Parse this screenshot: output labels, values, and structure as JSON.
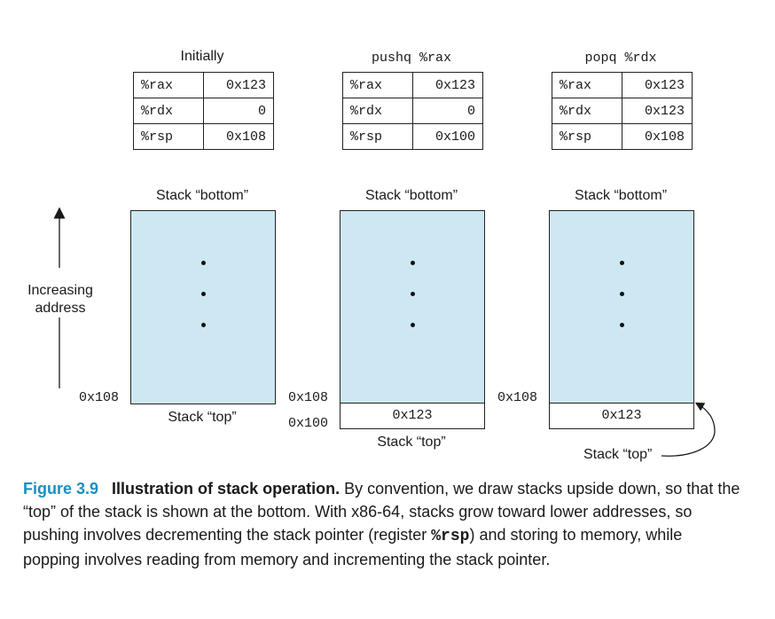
{
  "columns": [
    {
      "title": "Initially",
      "registers": [
        {
          "name": "%rax",
          "value": "0x123"
        },
        {
          "name": "%rdx",
          "value": "0"
        },
        {
          "name": "%rsp",
          "value": "0x108"
        }
      ],
      "stack_bottom_label": "Stack “bottom”",
      "stack_top_label": "Stack “top”",
      "addr_top": "0x108",
      "addr_bottom": "",
      "top_cell": ""
    },
    {
      "title": "pushq %rax",
      "registers": [
        {
          "name": "%rax",
          "value": "0x123"
        },
        {
          "name": "%rdx",
          "value": "0"
        },
        {
          "name": "%rsp",
          "value": "0x100"
        }
      ],
      "stack_bottom_label": "Stack “bottom”",
      "stack_top_label": "Stack “top”",
      "addr_top": "0x108",
      "addr_bottom": "0x100",
      "top_cell": "0x123"
    },
    {
      "title": "popq %rdx",
      "registers": [
        {
          "name": "%rax",
          "value": "0x123"
        },
        {
          "name": "%rdx",
          "value": "0x123"
        },
        {
          "name": "%rsp",
          "value": "0x108"
        }
      ],
      "stack_bottom_label": "Stack “bottom”",
      "stack_top_label": "Stack “top”",
      "addr_top": "0x108",
      "addr_bottom": "",
      "top_cell": "0x123"
    }
  ],
  "axis": {
    "line1": "Increasing",
    "line2": "address"
  },
  "colors": {
    "stack_fill": "#cde8f2",
    "figure_number": "#1a8fc0"
  },
  "caption": {
    "figure_number": "Figure 3.9",
    "title": "Illustration of stack operation.",
    "text_part1": " By convention, we draw stacks upside down, so that the “top” of the stack is shown at the bottom. With x86-64, stacks grow toward lower addresses, so pushing involves decrementing the stack pointer (register ",
    "register": "%rsp",
    "text_part2": ") and storing to memory, while popping involves reading from memory and incrementing the stack pointer."
  }
}
